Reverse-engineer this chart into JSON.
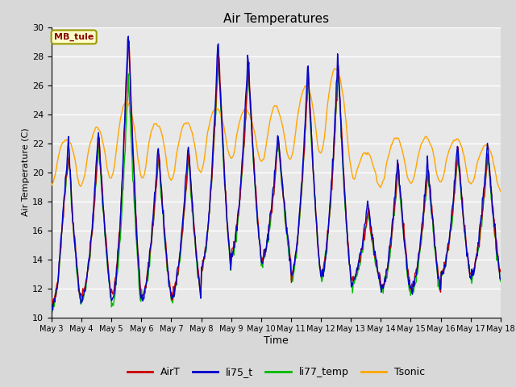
{
  "title": "Air Temperatures",
  "xlabel": "Time",
  "ylabel": "Air Temperature (C)",
  "ylim": [
    10,
    30
  ],
  "xlim_days": [
    3,
    18
  ],
  "annotation_text": "MB_tule",
  "annotation_color": "#8B0000",
  "annotation_bg": "#FFFFCC",
  "annotation_border": "#999900",
  "bg_color": "#E8E8E8",
  "grid_color": "#FFFFFF",
  "series_colors": {
    "AirT": "#CC0000",
    "li75_t": "#0000CC",
    "li77_temp": "#00BB00",
    "Tsonic": "#FFA500"
  },
  "lw": 1.0,
  "tick_labels": [
    "May 3",
    "May 4",
    "May 5",
    "May 6",
    "May 7",
    "May 8",
    "May 9",
    "May 10",
    "May 11",
    "May 12",
    "May 13",
    "May 14",
    "May 15",
    "May 16",
    "May 17",
    "May 18"
  ],
  "tick_positions": [
    3,
    4,
    5,
    6,
    7,
    8,
    9,
    10,
    11,
    12,
    13,
    14,
    15,
    16,
    17,
    18
  ],
  "yticks": [
    10,
    12,
    14,
    16,
    18,
    20,
    22,
    24,
    26,
    28,
    30
  ]
}
